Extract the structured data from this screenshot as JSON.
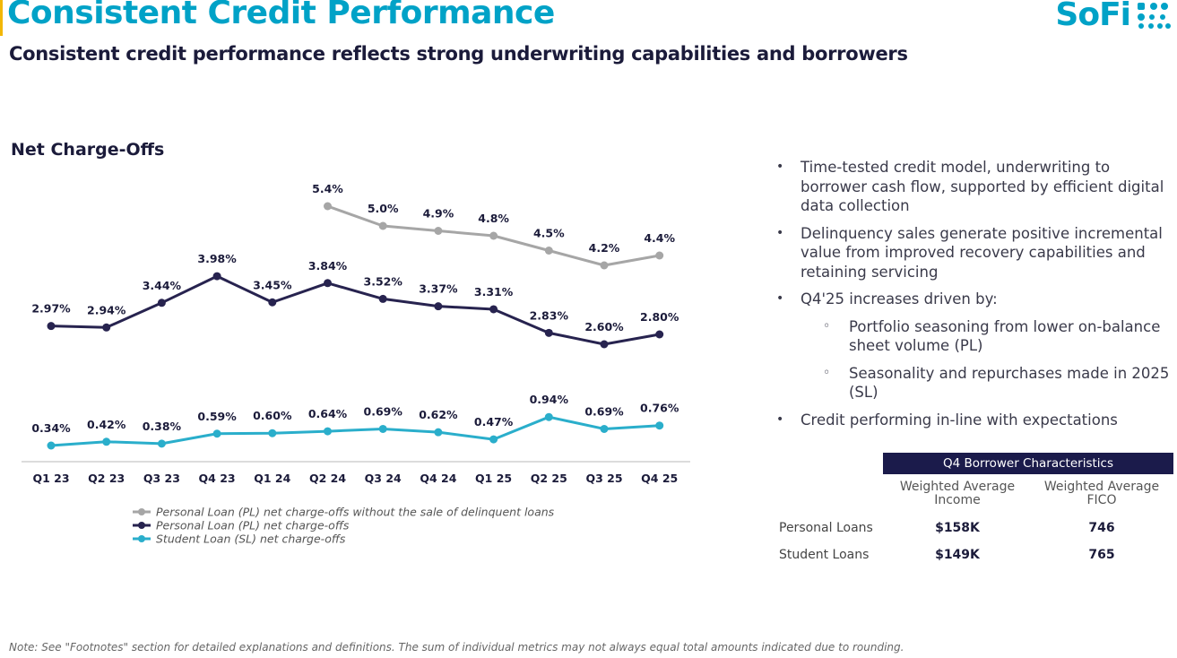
{
  "header": {
    "title": "Consistent Credit Performance",
    "subtitle": "Consistent credit performance reflects strong underwriting capabilities and borrowers",
    "logo_text": "SoFi"
  },
  "colors": {
    "brand": "#00a2c7",
    "navy": "#1b1b4b",
    "pl_without_sale": "#a6a6a6",
    "pl": "#27234f",
    "sl": "#2aaecb"
  },
  "chart_data": {
    "type": "line",
    "title": "Net Charge-Offs",
    "categories": [
      "Q1 23",
      "Q2 23",
      "Q3 23",
      "Q4 23",
      "Q1 24",
      "Q2 24",
      "Q3 24",
      "Q4 24",
      "Q1 25",
      "Q2 25",
      "Q3 25",
      "Q4 25"
    ],
    "series": [
      {
        "name": "Personal Loan (PL) net charge-offs without the sale of delinquent loans",
        "values": [
          null,
          null,
          null,
          null,
          null,
          5.4,
          5.0,
          4.9,
          4.8,
          4.5,
          4.2,
          4.4
        ],
        "labels": [
          null,
          null,
          null,
          null,
          null,
          "5.4%",
          "5.0%",
          "4.9%",
          "4.8%",
          "4.5%",
          "4.2%",
          "4.4%"
        ]
      },
      {
        "name": "Personal Loan (PL) net charge-offs",
        "values": [
          2.97,
          2.94,
          3.44,
          3.98,
          3.45,
          3.84,
          3.52,
          3.37,
          3.31,
          2.83,
          2.6,
          2.8
        ],
        "labels": [
          "2.97%",
          "2.94%",
          "3.44%",
          "3.98%",
          "3.45%",
          "3.84%",
          "3.52%",
          "3.37%",
          "3.31%",
          "2.83%",
          "2.60%",
          "2.80%"
        ]
      },
      {
        "name": "Student Loan (SL) net charge-offs",
        "values": [
          0.34,
          0.42,
          0.38,
          0.59,
          0.6,
          0.64,
          0.69,
          0.62,
          0.47,
          0.94,
          0.69,
          0.76
        ],
        "labels": [
          "0.34%",
          "0.42%",
          "0.38%",
          "0.59%",
          "0.60%",
          "0.64%",
          "0.69%",
          "0.62%",
          "0.47%",
          "0.94%",
          "0.69%",
          "0.76%"
        ]
      }
    ],
    "legend_position": "bottom-left",
    "grid": false
  },
  "bullets": [
    {
      "level": 1,
      "text": "Time-tested credit model, underwriting to borrower cash flow, supported by efficient digital data collection"
    },
    {
      "level": 1,
      "text": "Delinquency sales generate positive incremental value from improved recovery capabilities and retaining servicing"
    },
    {
      "level": 1,
      "text": "Q4'25 increases driven by:"
    },
    {
      "level": 2,
      "text": "Portfolio seasoning from lower on-balance sheet volume (PL)"
    },
    {
      "level": 2,
      "text": "Seasonality and repurchases made in 2025 (SL)"
    },
    {
      "level": 1,
      "text": "Credit performing in-line with expectations"
    }
  ],
  "borrower_table": {
    "title": "Q4 Borrower Characteristics",
    "columns": [
      "Weighted Average Income",
      "Weighted Average FICO"
    ],
    "rows": [
      {
        "label": "Personal Loans",
        "income": "$158K",
        "fico": "746"
      },
      {
        "label": "Student Loans",
        "income": "$149K",
        "fico": "765"
      }
    ]
  },
  "footnote": "Note: See \"Footnotes\" section for detailed explanations and definitions. The sum of individual metrics may not always equal total amounts indicated due to rounding."
}
